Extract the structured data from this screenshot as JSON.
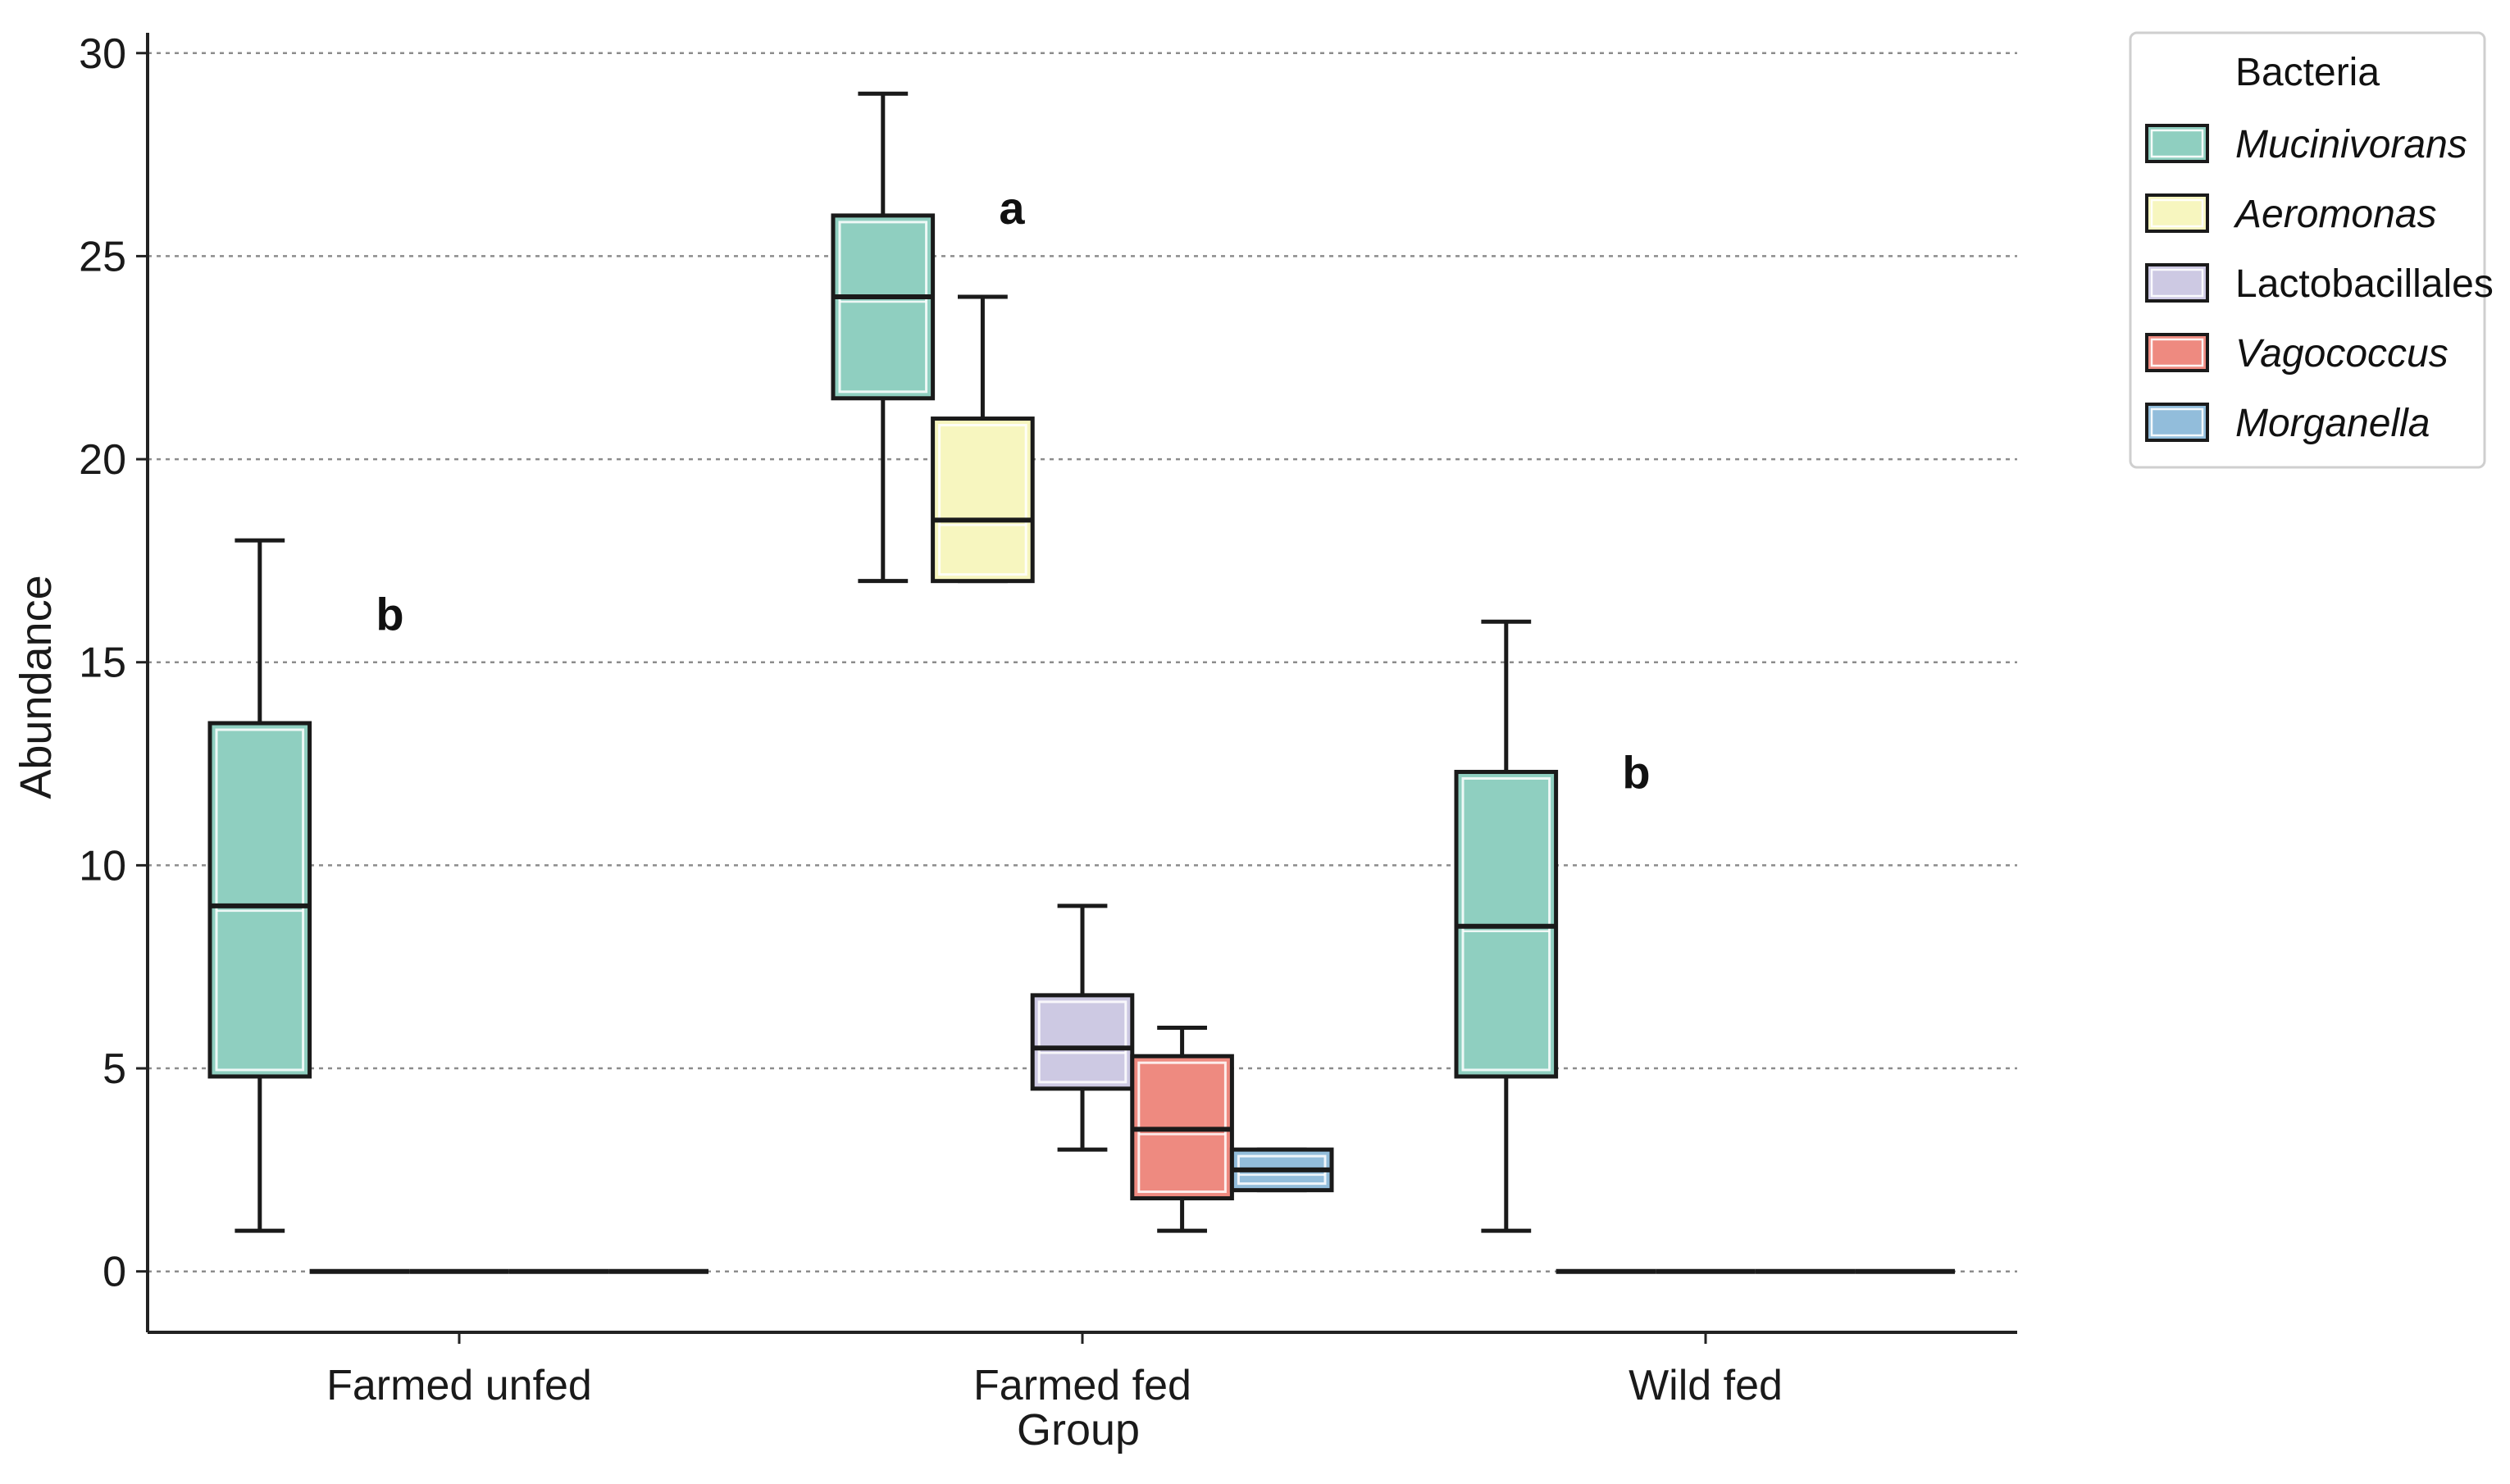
{
  "chart_data": {
    "type": "box",
    "xlabel": "Group",
    "ylabel": "Abundance",
    "ylim": [
      -1.5,
      30.5
    ],
    "yticks": [
      0,
      5,
      10,
      15,
      20,
      25,
      30
    ],
    "grid": "horizontal-dashed",
    "categories": [
      "Farmed unfed",
      "Farmed fed",
      "Wild fed"
    ],
    "legend": {
      "title": "Bacteria",
      "placement": "outside-top-right",
      "items": [
        {
          "name": "Mucinivorans",
          "color": "#8fcfc0",
          "italic": true
        },
        {
          "name": "Aeromonas",
          "color": "#f7f6bf",
          "italic": true
        },
        {
          "name": "Lactobacillales",
          "color": "#cdc9e3",
          "italic": false
        },
        {
          "name": "Vagococcus",
          "color": "#ee8a80",
          "italic": true
        },
        {
          "name": "Morganella",
          "color": "#92bddb",
          "italic": true
        }
      ]
    },
    "series": [
      {
        "name": "Mucinivorans",
        "boxes": [
          {
            "group": "Farmed unfed",
            "whisker_low": 1,
            "q1": 4.8,
            "median": 9,
            "q3": 13.5,
            "whisker_high": 18
          },
          {
            "group": "Farmed fed",
            "whisker_low": 17,
            "q1": 21.5,
            "median": 24,
            "q3": 26,
            "whisker_high": 29
          },
          {
            "group": "Wild fed",
            "whisker_low": 1,
            "q1": 4.8,
            "median": 8.5,
            "q3": 12.3,
            "whisker_high": 16
          }
        ]
      },
      {
        "name": "Aeromonas",
        "boxes": [
          {
            "group": "Farmed unfed",
            "whisker_low": 0,
            "q1": 0,
            "median": 0,
            "q3": 0,
            "whisker_high": 0
          },
          {
            "group": "Farmed fed",
            "whisker_low": 17,
            "q1": 17,
            "median": 18.5,
            "q3": 21,
            "whisker_high": 24
          },
          {
            "group": "Wild fed",
            "whisker_low": 0,
            "q1": 0,
            "median": 0,
            "q3": 0,
            "whisker_high": 0
          }
        ]
      },
      {
        "name": "Lactobacillales",
        "boxes": [
          {
            "group": "Farmed unfed",
            "whisker_low": 0,
            "q1": 0,
            "median": 0,
            "q3": 0,
            "whisker_high": 0
          },
          {
            "group": "Farmed fed",
            "whisker_low": 3,
            "q1": 4.5,
            "median": 5.5,
            "q3": 6.8,
            "whisker_high": 9
          },
          {
            "group": "Wild fed",
            "whisker_low": 0,
            "q1": 0,
            "median": 0,
            "q3": 0,
            "whisker_high": 0
          }
        ]
      },
      {
        "name": "Vagococcus",
        "boxes": [
          {
            "group": "Farmed unfed",
            "whisker_low": 0,
            "q1": 0,
            "median": 0,
            "q3": 0,
            "whisker_high": 0
          },
          {
            "group": "Farmed fed",
            "whisker_low": 1,
            "q1": 1.8,
            "median": 3.5,
            "q3": 5.3,
            "whisker_high": 6
          },
          {
            "group": "Wild fed",
            "whisker_low": 0,
            "q1": 0,
            "median": 0,
            "q3": 0,
            "whisker_high": 0
          }
        ]
      },
      {
        "name": "Morganella",
        "boxes": [
          {
            "group": "Farmed unfed",
            "whisker_low": 0,
            "q1": 0,
            "median": 0,
            "q3": 0,
            "whisker_high": 0
          },
          {
            "group": "Farmed fed",
            "whisker_low": 2,
            "q1": 2,
            "median": 2.5,
            "q3": 3,
            "whisker_high": 3
          },
          {
            "group": "Wild fed",
            "whisker_low": 0,
            "q1": 0,
            "median": 0,
            "q3": 0,
            "whisker_high": 0
          }
        ]
      }
    ],
    "annotations": [
      {
        "text": "b",
        "group": "Farmed unfed",
        "y": 16.2
      },
      {
        "text": "a",
        "group": "Farmed fed",
        "y": 26.2
      },
      {
        "text": "b",
        "group": "Wild fed",
        "y": 12.3
      }
    ]
  }
}
